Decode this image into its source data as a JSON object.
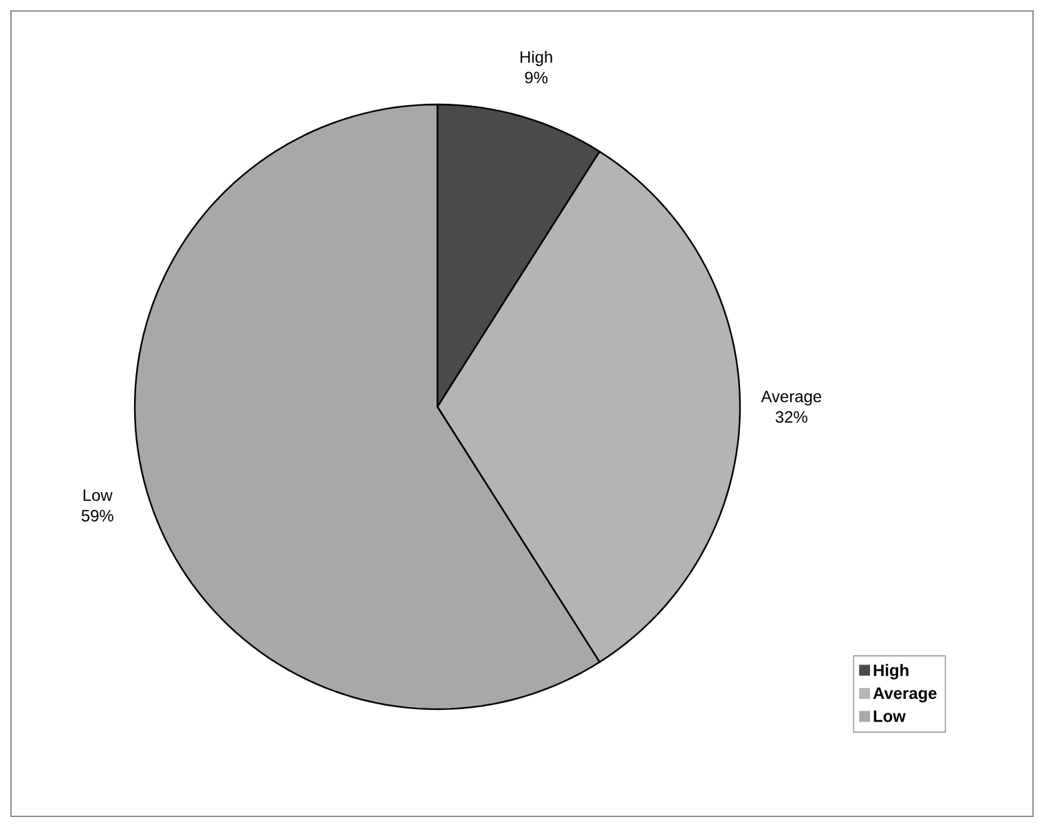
{
  "chart_data": {
    "type": "pie",
    "categories": [
      "High",
      "Average",
      "Low"
    ],
    "values": [
      9,
      32,
      59
    ],
    "value_labels": [
      "9%",
      "32%",
      "59%"
    ],
    "colors": [
      "#4a4a4a",
      "#b4b4b4",
      "#a8a8a8"
    ],
    "legend": "bottom right"
  }
}
